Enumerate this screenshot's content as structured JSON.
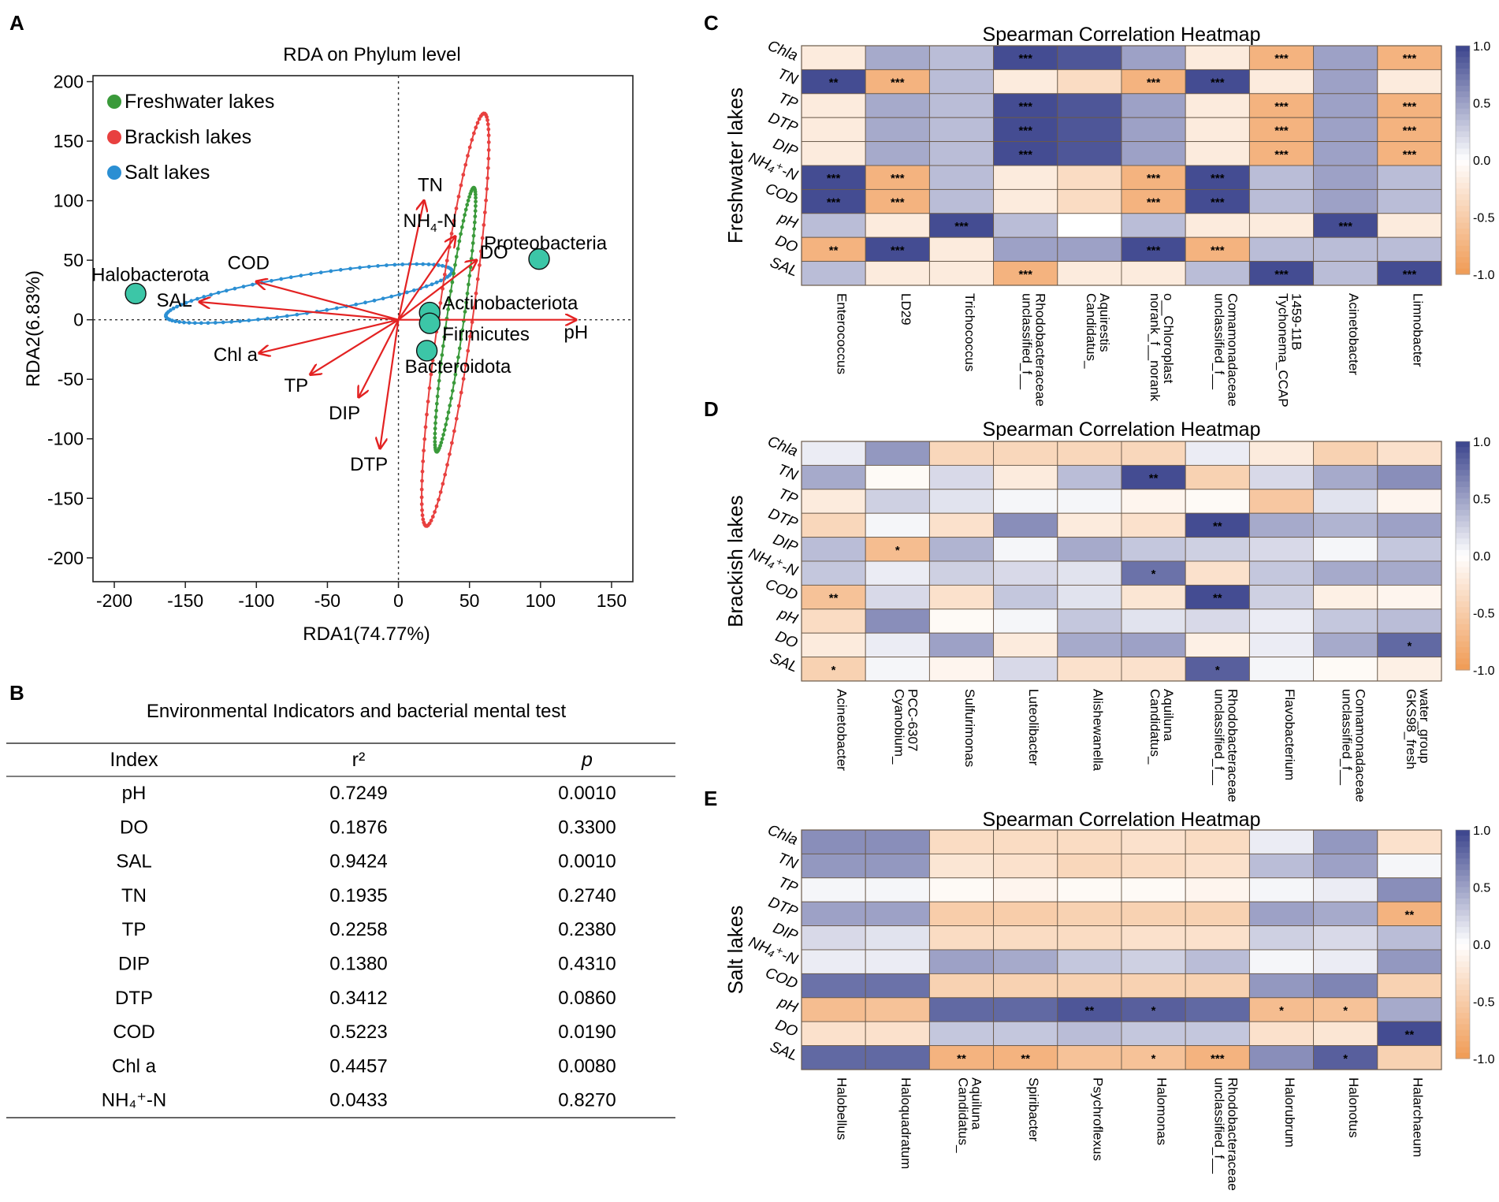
{
  "panel_labels": {
    "a": "A",
    "b": "B",
    "c": "C",
    "d": "D",
    "e": "E"
  },
  "chart_data": [
    {
      "type": "scatter",
      "id": "rda",
      "title": "RDA on Phylum level",
      "xlabel": "RDA1(74.77%)",
      "ylabel": "RDA2(6.83%)",
      "xlim": [
        -215,
        165
      ],
      "ylim": [
        -220,
        205
      ],
      "xticks": [
        -200,
        -150,
        -100,
        -50,
        0,
        50,
        100,
        150
      ],
      "yticks": [
        200,
        150,
        100,
        50,
        0,
        -50,
        -100,
        -150,
        -200
      ],
      "legend": [
        {
          "label": "Freshwater lakes",
          "color": "#3a9a3a"
        },
        {
          "label": "Brackish lakes",
          "color": "#e8403f"
        },
        {
          "label": "Salt lakes",
          "color": "#2b8fd3"
        }
      ],
      "species": [
        {
          "name": "Proteobacteria",
          "x": 99,
          "y": 51
        },
        {
          "name": "Halobacterota",
          "x": -185,
          "y": 22
        },
        {
          "name": "Actinobacteriota",
          "x": 22,
          "y": 6
        },
        {
          "name": "Firmicutes",
          "x": 22,
          "y": -3
        },
        {
          "name": "Bacteroidota",
          "x": 20,
          "y": -26
        }
      ],
      "arrows": [
        {
          "name": "TN",
          "x": 18,
          "y": 100
        },
        {
          "name": "NH4-N",
          "x": 40,
          "y": 70
        },
        {
          "name": "DO",
          "x": 55,
          "y": 50
        },
        {
          "name": "pH",
          "x": 125,
          "y": 0
        },
        {
          "name": "COD",
          "x": -100,
          "y": 32
        },
        {
          "name": "SAL",
          "x": -140,
          "y": 15
        },
        {
          "name": "Chl a",
          "x": -98,
          "y": -28
        },
        {
          "name": "TP",
          "x": -62,
          "y": -46
        },
        {
          "name": "DIP",
          "x": -28,
          "y": -65
        },
        {
          "name": "DTP",
          "x": -13,
          "y": -108
        }
      ],
      "ellipses": [
        {
          "group": "Salt lakes",
          "cx": -63,
          "cy": 22,
          "rx": 102,
          "ry": 16,
          "angle_deg": 9,
          "color": "#2b8fd3"
        },
        {
          "group": "Brackish lakes",
          "cx": 40,
          "cy": 0,
          "rx": 12,
          "ry": 175,
          "angle_deg": -8,
          "color": "#e8403f"
        },
        {
          "group": "Freshwater lakes",
          "cx": 40,
          "cy": 0,
          "rx": 6,
          "ry": 112,
          "angle_deg": -8,
          "color": "#3a9a3a"
        }
      ]
    },
    {
      "type": "table",
      "id": "mantel",
      "title": "Environmental Indicators and bacterial mental test",
      "columns": [
        "Index",
        "r²",
        "p"
      ],
      "rows": [
        [
          "pH",
          "0.7249",
          "0.0010"
        ],
        [
          "DO",
          "0.1876",
          "0.3300"
        ],
        [
          "SAL",
          "0.9424",
          "0.0010"
        ],
        [
          "TN",
          "0.1935",
          "0.2740"
        ],
        [
          "TP",
          "0.2258",
          "0.2380"
        ],
        [
          "DIP",
          "0.1380",
          "0.4310"
        ],
        [
          "DTP",
          "0.3412",
          "0.0860"
        ],
        [
          "COD",
          "0.5223",
          "0.0190"
        ],
        [
          "Chl a",
          "0.4457",
          "0.0080"
        ],
        [
          "NH₄⁺-N",
          "0.0433",
          "0.8270"
        ]
      ]
    },
    {
      "type": "heatmap",
      "id": "freshwater",
      "title": "Spearman Correlation Heatmap",
      "ylabel": "Freshwater lakes",
      "rows": [
        "Chla",
        "TN",
        "TP",
        "DTP",
        "DIP",
        "NH₄⁺-N",
        "COD",
        "pH",
        "DO",
        "SAL"
      ],
      "columns": [
        "Enterococcus",
        "LD29",
        "Trichococcus",
        "Rhodobacteraceae\nunclassified_f__",
        "Aquirestis\nCandidatus_",
        "o__Chloroplast\nnorank_f__norank",
        "Comamonadaceae\nunclassified_f__",
        "1459-11B\nTychonema_CCAP",
        "Acinetobacter",
        "Limnobacter"
      ],
      "values": [
        [
          -0.2,
          0.45,
          0.35,
          0.95,
          0.9,
          0.5,
          -0.2,
          -0.75,
          0.5,
          -0.75
        ],
        [
          0.95,
          -0.75,
          0.35,
          -0.2,
          -0.35,
          -0.75,
          0.95,
          -0.2,
          0.5,
          -0.2
        ],
        [
          -0.2,
          0.45,
          0.35,
          0.95,
          0.9,
          0.5,
          -0.2,
          -0.75,
          0.5,
          -0.75
        ],
        [
          -0.2,
          0.45,
          0.35,
          0.95,
          0.9,
          0.5,
          -0.2,
          -0.75,
          0.5,
          -0.75
        ],
        [
          -0.2,
          0.45,
          0.35,
          0.95,
          0.9,
          0.5,
          -0.2,
          -0.75,
          0.5,
          -0.75
        ],
        [
          0.95,
          -0.75,
          0.35,
          -0.2,
          -0.35,
          -0.75,
          0.95,
          0.35,
          0.5,
          0.35
        ],
        [
          0.95,
          -0.75,
          0.35,
          -0.2,
          -0.35,
          -0.75,
          0.95,
          0.35,
          0.5,
          0.35
        ],
        [
          0.35,
          -0.2,
          0.95,
          0.35,
          0.0,
          0.35,
          -0.2,
          -0.2,
          0.95,
          -0.2
        ],
        [
          -0.75,
          0.95,
          -0.2,
          0.5,
          0.5,
          0.95,
          -0.75,
          0.35,
          0.35,
          0.35
        ],
        [
          0.35,
          -0.2,
          -0.2,
          -0.75,
          -0.2,
          -0.2,
          0.35,
          0.95,
          0.35,
          0.95
        ]
      ],
      "stars": [
        [
          "",
          "",
          "",
          "***",
          "",
          "",
          "",
          "***",
          "",
          "***"
        ],
        [
          "**",
          "***",
          "",
          "",
          "",
          "***",
          "***",
          "",
          "",
          ""
        ],
        [
          "",
          "",
          "",
          "***",
          "",
          "",
          "",
          "***",
          "",
          "***"
        ],
        [
          "",
          "",
          "",
          "***",
          "",
          "",
          "",
          "***",
          "",
          "***"
        ],
        [
          "",
          "",
          "",
          "***",
          "",
          "",
          "",
          "***",
          "",
          "***"
        ],
        [
          "***",
          "***",
          "",
          "",
          "",
          "***",
          "***",
          "",
          "",
          ""
        ],
        [
          "***",
          "***",
          "",
          "",
          "",
          "***",
          "***",
          "",
          "",
          ""
        ],
        [
          "",
          "",
          "***",
          "",
          "",
          "",
          "",
          "",
          "***",
          ""
        ],
        [
          "**",
          "***",
          "",
          "",
          "",
          "***",
          "***",
          "",
          "",
          ""
        ],
        [
          "",
          "",
          "",
          "***",
          "",
          "",
          "",
          "***",
          "",
          "***"
        ]
      ],
      "scale": {
        "min": -1.0,
        "max": 1.0,
        "ticks": [
          "1.0",
          "0.5",
          "0.0",
          "-0.5",
          "-1.0"
        ]
      }
    },
    {
      "type": "heatmap",
      "id": "brackish",
      "title": "Spearman Correlation Heatmap",
      "ylabel": "Brackish lakes",
      "rows": [
        "Chla",
        "TN",
        "TP",
        "DTP",
        "DIP",
        "NH₄⁺-N",
        "COD",
        "pH",
        "DO",
        "SAL"
      ],
      "columns": [
        "Acinetobacter",
        "PCC-6307\nCyanobium_",
        "Sulfurimonas",
        "Luteolibacter",
        "Alishewanella",
        "Aquiluna\nCandidatus_",
        "Rhodobacteraceae\nunclassified_f__",
        "Flavobacterium",
        "Comamonadaceae\nunclassified_f__",
        "water_group\nGKS98_fresh"
      ],
      "values": [
        [
          0.1,
          0.55,
          -0.4,
          -0.4,
          -0.4,
          -0.4,
          0.1,
          -0.2,
          -0.45,
          -0.3
        ],
        [
          0.45,
          -0.05,
          0.2,
          -0.2,
          0.35,
          0.95,
          -0.45,
          0.2,
          0.45,
          0.6
        ],
        [
          -0.2,
          0.25,
          0.15,
          0.05,
          0.05,
          -0.1,
          -0.05,
          -0.55,
          0.15,
          -0.1
        ],
        [
          -0.4,
          0.05,
          -0.3,
          0.6,
          -0.2,
          -0.3,
          0.95,
          0.45,
          0.4,
          0.5
        ],
        [
          0.35,
          -0.65,
          0.4,
          0.05,
          0.45,
          0.3,
          0.25,
          0.2,
          0.05,
          0.3
        ],
        [
          0.3,
          0.1,
          0.25,
          0.2,
          0.15,
          0.75,
          -0.3,
          0.3,
          0.45,
          0.45
        ],
        [
          -0.6,
          0.2,
          -0.3,
          0.3,
          0.15,
          -0.25,
          0.95,
          0.25,
          -0.15,
          -0.1
        ],
        [
          -0.35,
          0.6,
          -0.05,
          0.05,
          0.3,
          0.15,
          0.2,
          0.1,
          0.3,
          0.35
        ],
        [
          -0.2,
          0.1,
          0.5,
          -0.2,
          0.45,
          0.5,
          -0.15,
          0.1,
          0.45,
          0.8
        ],
        [
          -0.45,
          0.05,
          -0.1,
          0.2,
          -0.3,
          -0.3,
          0.85,
          0.05,
          -0.05,
          -0.15
        ]
      ],
      "stars": [
        [
          "",
          "",
          "",
          "",
          "",
          "",
          "",
          "",
          "",
          ""
        ],
        [
          "",
          "",
          "",
          "",
          "",
          "**",
          "",
          "",
          "",
          ""
        ],
        [
          "",
          "",
          "",
          "",
          "",
          "",
          "",
          "",
          "",
          ""
        ],
        [
          "",
          "",
          "",
          "",
          "",
          "",
          "**",
          "",
          "",
          ""
        ],
        [
          "",
          "*",
          "",
          "",
          "",
          "",
          "",
          "",
          "",
          ""
        ],
        [
          "",
          "",
          "",
          "",
          "",
          "*",
          "",
          "",
          "",
          ""
        ],
        [
          "**",
          "",
          "",
          "",
          "",
          "",
          "**",
          "",
          "",
          ""
        ],
        [
          "",
          "",
          "",
          "",
          "",
          "",
          "",
          "",
          "",
          ""
        ],
        [
          "",
          "",
          "",
          "",
          "",
          "",
          "",
          "",
          "",
          "*"
        ],
        [
          "*",
          "",
          "",
          "",
          "",
          "",
          "*",
          "",
          "",
          ""
        ]
      ],
      "scale": {
        "min": -1.0,
        "max": 1.0,
        "ticks": [
          "1.0",
          "0.5",
          "0.0",
          "-0.5",
          "-1.0"
        ]
      }
    },
    {
      "type": "heatmap",
      "id": "salt",
      "title": "Spearman Correlation Heatmap",
      "ylabel": "Salt lakes",
      "rows": [
        "Chla",
        "TN",
        "TP",
        "DTP",
        "DIP",
        "NH₄⁺-N",
        "COD",
        "pH",
        "DO",
        "SAL"
      ],
      "columns": [
        "Halobellus",
        "Haloquadratum",
        "Aquiluna\nCandidatus_",
        "Spiribacter",
        "Psychroflexus",
        "Halomonas",
        "Rhodobacteraceae\nunclassified_f__",
        "Halorubrum",
        "Halonotus",
        "Halarchaeum"
      ],
      "values": [
        [
          0.6,
          0.6,
          -0.35,
          -0.35,
          -0.35,
          -0.3,
          -0.35,
          0.1,
          0.55,
          -0.3
        ],
        [
          0.55,
          0.55,
          -0.25,
          -0.3,
          -0.4,
          -0.35,
          -0.3,
          0.35,
          0.5,
          0.05
        ],
        [
          0.05,
          0.05,
          -0.05,
          -0.1,
          -0.05,
          -0.05,
          -0.1,
          0.05,
          0.1,
          0.6
        ],
        [
          0.5,
          0.5,
          -0.5,
          -0.5,
          -0.45,
          -0.45,
          -0.45,
          0.5,
          0.45,
          -0.75
        ],
        [
          0.2,
          0.15,
          -0.35,
          -0.35,
          -0.35,
          -0.3,
          -0.3,
          0.25,
          0.2,
          0.35
        ],
        [
          0.1,
          0.1,
          0.5,
          0.45,
          0.3,
          0.25,
          0.35,
          0.05,
          0.1,
          0.55
        ],
        [
          0.75,
          0.75,
          -0.45,
          -0.45,
          -0.45,
          -0.45,
          -0.45,
          0.55,
          0.65,
          -0.45
        ],
        [
          -0.65,
          -0.6,
          0.8,
          0.8,
          0.9,
          0.85,
          0.8,
          -0.65,
          -0.6,
          0.45
        ],
        [
          -0.3,
          -0.3,
          0.3,
          0.3,
          0.35,
          0.3,
          0.3,
          -0.3,
          -0.25,
          0.95
        ],
        [
          0.8,
          0.8,
          -0.75,
          -0.75,
          -0.6,
          -0.6,
          -0.75,
          0.6,
          0.85,
          -0.45
        ]
      ],
      "stars": [
        [
          "",
          "",
          "",
          "",
          "",
          "",
          "",
          "",
          "",
          ""
        ],
        [
          "",
          "",
          "",
          "",
          "",
          "",
          "",
          "",
          "",
          ""
        ],
        [
          "",
          "",
          "",
          "",
          "",
          "",
          "",
          "",
          "",
          ""
        ],
        [
          "",
          "",
          "",
          "",
          "",
          "",
          "",
          "",
          "",
          "**"
        ],
        [
          "",
          "",
          "",
          "",
          "",
          "",
          "",
          "",
          "",
          ""
        ],
        [
          "",
          "",
          "",
          "",
          "",
          "",
          "",
          "",
          "",
          ""
        ],
        [
          "",
          "",
          "",
          "",
          "",
          "",
          "",
          "",
          "",
          ""
        ],
        [
          "",
          "",
          "",
          "",
          "**",
          "*",
          "",
          "*",
          "*",
          ""
        ],
        [
          "",
          "",
          "",
          "",
          "",
          "",
          "",
          "",
          "",
          "**"
        ],
        [
          "",
          "",
          "**",
          "**",
          "",
          "*",
          "***",
          "",
          "*",
          ""
        ]
      ],
      "scale": {
        "min": -1.0,
        "max": 1.0,
        "ticks": [
          "1.0",
          "0.5",
          "0.0",
          "-0.5",
          "-1.0"
        ]
      }
    }
  ]
}
